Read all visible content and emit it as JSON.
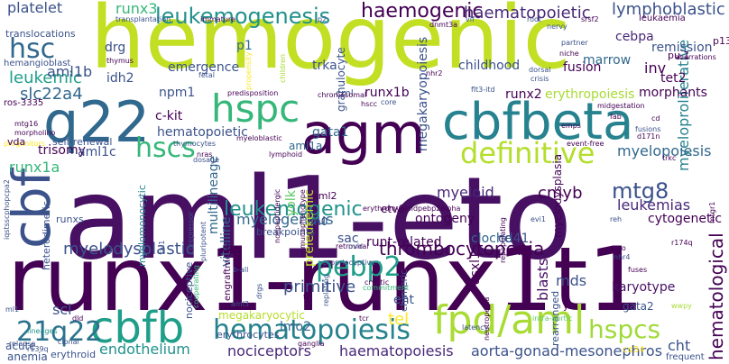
{
  "words": [
    {
      "text": "hemogenic",
      "color": "#c2df23"
    },
    {
      "text": "aml1-eto",
      "color": "#471063"
    },
    {
      "text": "runx1-runx1t1",
      "color": "#440154"
    },
    {
      "text": "cbfbeta",
      "color": "#26828e"
    },
    {
      "text": "q22",
      "color": "#31688e"
    },
    {
      "text": "agm",
      "color": "#440154"
    },
    {
      "text": "cbf",
      "color": "#3b528b"
    },
    {
      "text": "cbfb",
      "color": "#1f9e89"
    },
    {
      "text": "fpd/aml",
      "color": "#a8db34"
    },
    {
      "text": "hspc",
      "color": "#35b779"
    },
    {
      "text": "definitive",
      "color": "#b5de2b"
    },
    {
      "text": "hematopoiesis",
      "color": "#26828e"
    },
    {
      "text": "leukemogenesis",
      "color": "#21918c"
    },
    {
      "text": "haemogenic",
      "color": "#440154"
    },
    {
      "text": "hsc",
      "color": "#31688e"
    },
    {
      "text": "hscs",
      "color": "#35b779"
    },
    {
      "text": "pebp2",
      "color": "#1f9e89"
    },
    {
      "text": "21q22",
      "color": "#2c728e"
    },
    {
      "text": "mtg8",
      "color": "#3b528b"
    },
    {
      "text": "hspcs",
      "color": "#a0da39"
    },
    {
      "text": "leukemogenic",
      "color": "#21918c"
    },
    {
      "text": "haematopoietic",
      "color": "#482878"
    },
    {
      "text": "runx3",
      "color": "#35b779"
    },
    {
      "text": "platelet",
      "color": "#3b528b"
    },
    {
      "text": "leukemic",
      "color": "#1f9e89"
    },
    {
      "text": "aml1b",
      "color": "#3b528b"
    },
    {
      "text": "slc22a4",
      "color": "#31688e"
    },
    {
      "text": "myelodysplastic",
      "color": "#3b528b"
    },
    {
      "text": "thrombocytopenia",
      "color": "#440154"
    },
    {
      "text": "myelogenous",
      "color": "#31688e"
    },
    {
      "text": "endothelium",
      "color": "#21918c"
    },
    {
      "text": "nociceptors",
      "color": "#482878"
    },
    {
      "text": "haematopoiesis",
      "color": "#482878"
    },
    {
      "text": "aorta-gonad-mesonephros",
      "color": "#3b528b"
    },
    {
      "text": "leukemias",
      "color": "#482878"
    },
    {
      "text": "lymphoblastic",
      "color": "#3b528b"
    },
    {
      "text": "cebpa",
      "color": "#482878"
    },
    {
      "text": "runx1a",
      "color": "#35b779"
    },
    {
      "text": "primitive",
      "color": "#3b528b"
    },
    {
      "text": "cmyb",
      "color": "#440154"
    },
    {
      "text": "myeloproliferative",
      "color": "#26828e"
    },
    {
      "text": "hematological",
      "color": "#440154"
    },
    {
      "text": "runx1b",
      "color": "#440154"
    },
    {
      "text": "hematopoietic",
      "color": "#3b528b"
    },
    {
      "text": "gata1",
      "color": "#31688e"
    },
    {
      "text": "myeloid",
      "color": "#482878"
    },
    {
      "text": "myelopoiesis",
      "color": "#31688e"
    },
    {
      "text": "blasts",
      "color": "#471063"
    },
    {
      "text": "tel",
      "color": "#fde725"
    },
    {
      "text": "scl",
      "color": "#3b528b"
    },
    {
      "text": "cht",
      "color": "#3b528b"
    },
    {
      "text": "mds",
      "color": "#3b528b"
    },
    {
      "text": "karyotype",
      "color": "#471063"
    },
    {
      "text": "cytogenetic",
      "color": "#440154"
    },
    {
      "text": "megakaryopoiesis",
      "color": "#3b528b"
    },
    {
      "text": "erythropoiesis",
      "color": "#a8db34"
    },
    {
      "text": "runx2",
      "color": "#440154"
    },
    {
      "text": "ontogeny",
      "color": "#440154"
    },
    {
      "text": "multilineage",
      "color": "#31688e"
    },
    {
      "text": "vitelline",
      "color": "#31688e"
    },
    {
      "text": "yolk",
      "color": "#5ec962"
    },
    {
      "text": "sac",
      "color": "#3b528b"
    },
    {
      "text": "runt-related",
      "color": "#440154"
    },
    {
      "text": "cloche",
      "color": "#31688e"
    },
    {
      "text": "cd41",
      "color": "#3b528b"
    },
    {
      "text": "asxl1",
      "color": "#440154"
    },
    {
      "text": "myelodysplasia",
      "color": "#440154"
    },
    {
      "text": "preleukemic",
      "color": "#c2df23"
    },
    {
      "text": "lmo2",
      "color": "#31688e"
    },
    {
      "text": "eht",
      "color": "#3b528b"
    },
    {
      "text": "emergence",
      "color": "#3b528b"
    },
    {
      "text": "npm1",
      "color": "#3b528b"
    },
    {
      "text": "c-kit",
      "color": "#440154"
    },
    {
      "text": "trisomy",
      "color": "#440154"
    },
    {
      "text": "aml1c",
      "color": "#3b528b"
    },
    {
      "text": "trka",
      "color": "#3b528b"
    },
    {
      "text": "idh2",
      "color": "#3b528b"
    },
    {
      "text": "drg",
      "color": "#3b528b"
    },
    {
      "text": "p1",
      "color": "#31688e"
    },
    {
      "text": "inv",
      "color": "#440154"
    },
    {
      "text": "tet2",
      "color": "#440154"
    },
    {
      "text": "morphants",
      "color": "#440154"
    },
    {
      "text": "fusion",
      "color": "#440154"
    },
    {
      "text": "marrow",
      "color": "#31688e"
    },
    {
      "text": "childhood",
      "color": "#3b528b"
    },
    {
      "text": "remission",
      "color": "#3b528b"
    },
    {
      "text": "granulocyte",
      "color": "#3b528b"
    },
    {
      "text": "translocations",
      "color": "#3b528b"
    },
    {
      "text": "hemangioblast",
      "color": "#3b528b"
    },
    {
      "text": "ros-3335",
      "color": "#440154"
    },
    {
      "text": "cml",
      "color": "#3b528b"
    },
    {
      "text": "aml1a",
      "color": "#31688e"
    },
    {
      "text": "aml2",
      "color": "#440154"
    },
    {
      "text": "etv6",
      "color": "#440154"
    },
    {
      "text": "m0",
      "color": "#3b528b"
    },
    {
      "text": "megakaryocytic",
      "color": "#b5de2b"
    },
    {
      "text": "erythrocytes",
      "color": "#3b528b"
    },
    {
      "text": "acute",
      "color": "#3b528b"
    },
    {
      "text": "gata2",
      "color": "#3b528b"
    },
    {
      "text": "ys",
      "color": "#440154"
    },
    {
      "text": "rearranged",
      "color": "#3b528b"
    },
    {
      "text": "anemia",
      "color": "#3b528b"
    },
    {
      "text": "erythroid",
      "color": "#3b528b"
    },
    {
      "text": "self-renewal",
      "color": "#3b528b"
    },
    {
      "text": "runxs",
      "color": "#3b528b"
    },
    {
      "text": "breakpoints",
      "color": "#3b528b"
    },
    {
      "text": "nociceptive",
      "color": "#3b528b"
    },
    {
      "text": "engraftment",
      "color": "#440154"
    },
    {
      "text": "heterodimeric",
      "color": "#3b528b"
    },
    {
      "text": "myelomonocytic",
      "color": "#26828e"
    },
    {
      "text": "pu.1",
      "color": "#440154"
    },
    {
      "text": "p13",
      "color": "#440154"
    },
    {
      "text": "chimeric",
      "color": "#3b528b"
    },
    {
      "text": "cd34",
      "color": "#fde725"
    },
    {
      "text": "frequent",
      "color": "#3b528b"
    },
    {
      "text": "leukaemia",
      "color": "#440154"
    },
    {
      "text": "thymus",
      "color": "#440154"
    },
    {
      "text": "transplantation",
      "color": "#3b528b"
    },
    {
      "text": "immature",
      "color": "#440154"
    },
    {
      "text": "nervy",
      "color": "#3b528b"
    },
    {
      "text": "root",
      "color": "#3b528b"
    },
    {
      "text": "vif",
      "color": "#3b528b"
    },
    {
      "text": "srsf2",
      "color": "#440154"
    },
    {
      "text": "partner",
      "color": "#3b528b"
    },
    {
      "text": "niche",
      "color": "#440154"
    },
    {
      "text": "dorsal",
      "color": "#3b528b"
    },
    {
      "text": "crisis",
      "color": "#3b528b"
    },
    {
      "text": "core",
      "color": "#3b528b"
    },
    {
      "text": "chromosomal",
      "color": "#440154"
    },
    {
      "text": "predisposition",
      "color": "#440154"
    },
    {
      "text": "fetal",
      "color": "#3b528b"
    },
    {
      "text": "mtg16",
      "color": "#440154"
    },
    {
      "text": "morpholino",
      "color": "#440154"
    },
    {
      "text": "thymocytes",
      "color": "#3b528b"
    },
    {
      "text": "dosage",
      "color": "#3b528b"
    },
    {
      "text": "lymphoid",
      "color": "#440154"
    },
    {
      "text": "myeloblastic",
      "color": "#440154"
    },
    {
      "text": "event-free",
      "color": "#440154"
    },
    {
      "text": "trkc",
      "color": "#440154"
    },
    {
      "text": "evi1",
      "color": "#3b528b"
    },
    {
      "text": "reh",
      "color": "#3b528b"
    },
    {
      "text": "mpo",
      "color": "#440154"
    },
    {
      "text": "nhr4",
      "color": "#3b528b"
    },
    {
      "text": "fuses",
      "color": "#440154"
    },
    {
      "text": "r174q",
      "color": "#440154"
    },
    {
      "text": "ml1",
      "color": "#3b528b"
    },
    {
      "text": "dld",
      "color": "#440154"
    },
    {
      "text": "lineages",
      "color": "#21918c"
    },
    {
      "text": "relapse",
      "color": "#3b528b"
    },
    {
      "text": "r139q",
      "color": "#3b528b"
    },
    {
      "text": "clonal",
      "color": "#3b528b"
    },
    {
      "text": "cooperating",
      "color": "#35b779"
    },
    {
      "text": "ganglia",
      "color": "#440154"
    },
    {
      "text": "intra-aortic",
      "color": "#5ec962"
    },
    {
      "text": "tcr",
      "color": "#440154"
    },
    {
      "text": "replating",
      "color": "#3b528b"
    },
    {
      "text": "commitment",
      "color": "#35b779"
    },
    {
      "text": "b-all",
      "color": "#3b528b"
    },
    {
      "text": "aml3",
      "color": "#3b528b"
    },
    {
      "text": "fil",
      "color": "#440154"
    },
    {
      "text": "erythromyeloidpebp2alpha",
      "color": "#440154"
    },
    {
      "text": "proprioceptive",
      "color": "#3b528b"
    },
    {
      "text": "retroviral",
      "color": "#440154"
    },
    {
      "text": "cryptic",
      "color": "#440154"
    },
    {
      "text": "tal1",
      "color": "#3b528b"
    },
    {
      "text": "corepressor",
      "color": "#3b528b"
    },
    {
      "text": "pluripotent",
      "color": "#3b528b"
    },
    {
      "text": "mrd",
      "color": "#3b528b"
    },
    {
      "text": "nhr2",
      "color": "#440154"
    },
    {
      "text": "dnmt3a",
      "color": "#440154"
    },
    {
      "text": "p2",
      "color": "#3b528b"
    },
    {
      "text": "fab",
      "color": "#440154"
    },
    {
      "text": "emps",
      "color": "#440154"
    },
    {
      "text": "hscc",
      "color": "#440154"
    },
    {
      "text": "nras",
      "color": "#440154"
    },
    {
      "text": "progenitors",
      "color": "#fde725"
    },
    {
      "text": "flt3-itd",
      "color": "#3b528b"
    },
    {
      "text": "cd",
      "color": "#440154"
    },
    {
      "text": "vda",
      "color": "#440154"
    },
    {
      "text": "wwpy",
      "color": "#a8db34"
    },
    {
      "text": "propensity",
      "color": "#fde725"
    },
    {
      "text": "aberrations",
      "color": "#440154"
    },
    {
      "text": "children",
      "color": "#a8db34"
    },
    {
      "text": "midgestation",
      "color": "#440154"
    },
    {
      "text": "fusions",
      "color": "#3b528b"
    },
    {
      "text": "iqstsscphopcpa2",
      "color": "#3b528b"
    },
    {
      "text": "latency",
      "color": "#3b528b"
    },
    {
      "text": "drgs",
      "color": "#3b528b"
    },
    {
      "text": "repopulating",
      "color": "#440154"
    },
    {
      "text": "immunophenotype",
      "color": "#440154"
    },
    {
      "text": "nonpeptidergic",
      "color": "#440154"
    },
    {
      "text": "neutropenia",
      "color": "#440154"
    },
    {
      "text": "mtgr1",
      "color": "#440154"
    },
    {
      "text": "d171n",
      "color": "#440154"
    },
    {
      "text": "tgfbeta",
      "color": "#3b528b"
    }
  ]
}
